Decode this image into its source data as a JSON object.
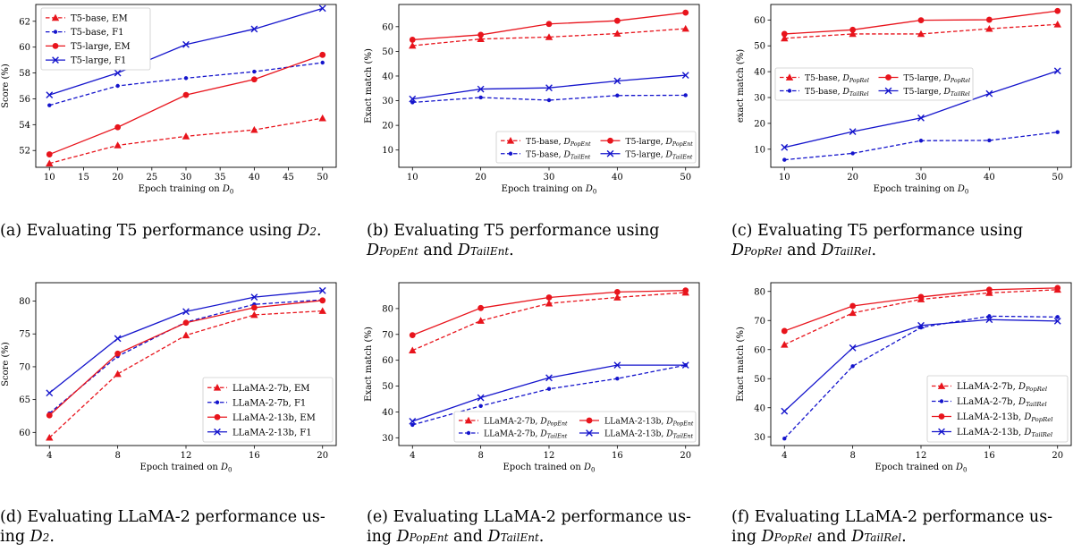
{
  "chart_data": [
    {
      "type": "line",
      "xlabel": "Epoch training on D",
      "xlabel_sub": "0",
      "ylabel": "Score (%)",
      "xlim": [
        8,
        52
      ],
      "ylim": [
        50.7,
        63.3
      ],
      "xticks": [
        10,
        15,
        20,
        25,
        30,
        35,
        40,
        45,
        50
      ],
      "yticks": [
        52,
        54,
        56,
        58,
        60,
        62
      ],
      "legend": "top-left",
      "legend_cols": 1,
      "series": [
        {
          "name": "T5-base, EM",
          "color": "#e8141c",
          "dashed": true,
          "marker": "triangle",
          "x": [
            10,
            20,
            30,
            40,
            50
          ],
          "y": [
            51.0,
            52.4,
            53.1,
            53.6,
            54.5
          ]
        },
        {
          "name": "T5-base, F1",
          "color": "#1414cc",
          "dashed": true,
          "marker": "dot",
          "x": [
            10,
            20,
            30,
            40,
            50
          ],
          "y": [
            55.5,
            57.0,
            57.6,
            58.1,
            58.8
          ]
        },
        {
          "name": "T5-large, EM",
          "color": "#e8141c",
          "dashed": false,
          "marker": "circle",
          "x": [
            10,
            20,
            30,
            40,
            50
          ],
          "y": [
            51.7,
            53.8,
            56.3,
            57.5,
            59.4
          ]
        },
        {
          "name": "T5-large, F1",
          "color": "#1414cc",
          "dashed": false,
          "marker": "x",
          "x": [
            10,
            20,
            30,
            40,
            50
          ],
          "y": [
            56.3,
            58.0,
            60.2,
            61.4,
            63.0
          ]
        }
      ]
    },
    {
      "type": "line",
      "xlabel": "Epoch training on D",
      "xlabel_sub": "0",
      "ylabel": "Exact match (%)",
      "xlim": [
        8,
        52
      ],
      "ylim": [
        3,
        69
      ],
      "xticks": [
        10,
        20,
        30,
        40,
        50
      ],
      "yticks": [
        10,
        20,
        30,
        40,
        50,
        60
      ],
      "legend": "bottom-right",
      "legend_cols": 2,
      "series": [
        {
          "name": "T5-base, D",
          "name_sub": "PopEnt",
          "color": "#e8141c",
          "dashed": true,
          "marker": "triangle",
          "x": [
            10,
            20,
            30,
            40,
            50
          ],
          "y": [
            52.3,
            55.0,
            55.8,
            57.2,
            59.2
          ]
        },
        {
          "name": "T5-base, D",
          "name_sub": "TailEnt",
          "color": "#1414cc",
          "dashed": true,
          "marker": "dot",
          "x": [
            10,
            20,
            30,
            40,
            50
          ],
          "y": [
            29.3,
            31.3,
            30.2,
            32.1,
            32.2
          ]
        },
        {
          "name": "T5-large, D",
          "name_sub": "PopEnt",
          "color": "#e8141c",
          "dashed": false,
          "marker": "circle",
          "x": [
            10,
            20,
            30,
            40,
            50
          ],
          "y": [
            54.7,
            56.7,
            61.1,
            62.4,
            65.7
          ]
        },
        {
          "name": "T5-large, D",
          "name_sub": "TailEnt",
          "color": "#1414cc",
          "dashed": false,
          "marker": "x",
          "x": [
            10,
            20,
            30,
            40,
            50
          ],
          "y": [
            30.7,
            34.7,
            35.2,
            38.0,
            40.3
          ]
        }
      ]
    },
    {
      "type": "line",
      "xlabel": "Epoch training on D",
      "xlabel_sub": "0",
      "ylabel": "exact match (%)",
      "xlim": [
        8,
        52
      ],
      "ylim": [
        3,
        66
      ],
      "xticks": [
        10,
        20,
        30,
        40,
        50
      ],
      "yticks": [
        10,
        20,
        30,
        40,
        50,
        60
      ],
      "legend": "center-left",
      "legend_cols": 2,
      "series": [
        {
          "name": "T5-base, D",
          "name_sub": "PopRel",
          "color": "#e8141c",
          "dashed": true,
          "marker": "triangle",
          "x": [
            10,
            20,
            30,
            40,
            50
          ],
          "y": [
            52.9,
            54.6,
            54.6,
            56.6,
            58.3
          ]
        },
        {
          "name": "T5-base, D",
          "name_sub": "TailRel",
          "color": "#1414cc",
          "dashed": true,
          "marker": "dot",
          "x": [
            10,
            20,
            30,
            40,
            50
          ],
          "y": [
            5.9,
            8.4,
            13.3,
            13.4,
            16.6
          ]
        },
        {
          "name": "T5-large, D",
          "name_sub": "PopRel",
          "color": "#e8141c",
          "dashed": false,
          "marker": "circle",
          "x": [
            10,
            20,
            30,
            40,
            50
          ],
          "y": [
            54.6,
            56.2,
            59.9,
            60.1,
            63.5
          ]
        },
        {
          "name": "T5-large, D",
          "name_sub": "TailRel",
          "color": "#1414cc",
          "dashed": false,
          "marker": "x",
          "x": [
            10,
            20,
            30,
            40,
            50
          ],
          "y": [
            10.7,
            16.8,
            22.1,
            31.5,
            40.3
          ]
        }
      ]
    },
    {
      "type": "line",
      "xlabel": "Epoch trained on D",
      "xlabel_sub": "0",
      "ylabel": "Score (%)",
      "xlim": [
        3.2,
        20.8
      ],
      "ylim": [
        58.0,
        82.8
      ],
      "xticks": [
        4,
        8,
        12,
        16,
        20
      ],
      "yticks": [
        60,
        65,
        70,
        75,
        80
      ],
      "legend": "bottom-right",
      "legend_cols": 1,
      "series": [
        {
          "name": "LLaMA-2-7b, EM",
          "color": "#e8141c",
          "dashed": true,
          "marker": "triangle",
          "x": [
            4,
            8,
            12,
            16,
            20
          ],
          "y": [
            59.2,
            68.9,
            74.8,
            77.9,
            78.5
          ]
        },
        {
          "name": "LLaMA-2-7b, F1",
          "color": "#1414cc",
          "dashed": true,
          "marker": "dot",
          "x": [
            4,
            8,
            12,
            16,
            20
          ],
          "y": [
            62.9,
            71.6,
            76.8,
            79.5,
            80.2
          ]
        },
        {
          "name": "LLaMA-2-13b, EM",
          "color": "#e8141c",
          "dashed": false,
          "marker": "circle",
          "x": [
            4,
            8,
            12,
            16,
            20
          ],
          "y": [
            62.6,
            72.0,
            76.7,
            79.0,
            80.1
          ]
        },
        {
          "name": "LLaMA-2-13b, F1",
          "color": "#1414cc",
          "dashed": false,
          "marker": "x",
          "x": [
            4,
            8,
            12,
            16,
            20
          ],
          "y": [
            66.0,
            74.3,
            78.4,
            80.6,
            81.6
          ]
        }
      ]
    },
    {
      "type": "line",
      "xlabel": "Epoch trained on D",
      "xlabel_sub": "0",
      "ylabel": "Exact match (%)",
      "xlim": [
        3.2,
        20.8
      ],
      "ylim": [
        27,
        90
      ],
      "xticks": [
        4,
        8,
        12,
        16,
        20
      ],
      "yticks": [
        30,
        40,
        50,
        60,
        70,
        80
      ],
      "legend": "bottom-right",
      "legend_cols": 2,
      "series": [
        {
          "name": "LLaMA-2-7b, D",
          "name_sub": "PopEnt",
          "color": "#e8141c",
          "dashed": true,
          "marker": "triangle",
          "x": [
            4,
            8,
            12,
            16,
            20
          ],
          "y": [
            63.8,
            75.3,
            82.0,
            84.3,
            86.2
          ]
        },
        {
          "name": "LLaMA-2-7b, D",
          "name_sub": "TailEnt",
          "color": "#1414cc",
          "dashed": true,
          "marker": "dot",
          "x": [
            4,
            8,
            12,
            16,
            20
          ],
          "y": [
            35.0,
            42.3,
            48.9,
            52.9,
            58.1
          ]
        },
        {
          "name": "LLaMA-2-13b, D",
          "name_sub": "PopEnt",
          "color": "#e8141c",
          "dashed": false,
          "marker": "circle",
          "x": [
            4,
            8,
            12,
            16,
            20
          ],
          "y": [
            69.7,
            80.2,
            84.3,
            86.4,
            87.0
          ]
        },
        {
          "name": "LLaMA-2-13b, D",
          "name_sub": "TailEnt",
          "color": "#1414cc",
          "dashed": false,
          "marker": "x",
          "x": [
            4,
            8,
            12,
            16,
            20
          ],
          "y": [
            36.4,
            45.5,
            53.2,
            58.1,
            58.1
          ]
        }
      ]
    },
    {
      "type": "line",
      "xlabel": "Epoch trained on D",
      "xlabel_sub": "0",
      "ylabel": "Exact match (%)",
      "xlim": [
        3.2,
        20.8
      ],
      "ylim": [
        27,
        83
      ],
      "xticks": [
        4,
        8,
        12,
        16,
        20
      ],
      "yticks": [
        30,
        40,
        50,
        60,
        70,
        80
      ],
      "legend": "bottom-right",
      "legend_cols": 1,
      "series": [
        {
          "name": "LLaMA-2-7b, D",
          "name_sub": "PopRel",
          "color": "#e8141c",
          "dashed": true,
          "marker": "triangle",
          "x": [
            4,
            8,
            12,
            16,
            20
          ],
          "y": [
            61.7,
            72.6,
            77.3,
            79.5,
            80.6
          ]
        },
        {
          "name": "LLaMA-2-7b, D",
          "name_sub": "TailRel",
          "color": "#1414cc",
          "dashed": true,
          "marker": "dot",
          "x": [
            4,
            8,
            12,
            16,
            20
          ],
          "y": [
            29.4,
            54.3,
            67.6,
            71.5,
            71.2
          ]
        },
        {
          "name": "LLaMA-2-13b, D",
          "name_sub": "PopRel",
          "color": "#e8141c",
          "dashed": false,
          "marker": "circle",
          "x": [
            4,
            8,
            12,
            16,
            20
          ],
          "y": [
            66.4,
            75.0,
            78.1,
            80.6,
            81.2
          ]
        },
        {
          "name": "LLaMA-2-13b, D",
          "name_sub": "TailRel",
          "color": "#1414cc",
          "dashed": false,
          "marker": "x",
          "x": [
            4,
            8,
            12,
            16,
            20
          ],
          "y": [
            38.8,
            60.6,
            68.3,
            70.3,
            69.8
          ]
        }
      ]
    }
  ],
  "captions": {
    "a": {
      "text": "(a) Evaluating T5 performance using ",
      "d": "D",
      "sub": "2",
      "end": "."
    },
    "b": {
      "line1": "(b) Evaluating T5 performance using",
      "d1": "D",
      "sub1": "PopEnt",
      "and": " and ",
      "d2": "D",
      "sub2": "TailEnt",
      "end": "."
    },
    "c": {
      "line1": "(c) Evaluating T5 performance using",
      "d1": "D",
      "sub1": "PopRel",
      "and": " and ",
      "d2": "D",
      "sub2": "TailRel",
      "end": "."
    },
    "d": {
      "line1": "(d) Evaluating LLaMA-2 performance us-",
      "line2": "ing ",
      "d": "D",
      "sub": "2",
      "end": "."
    },
    "e": {
      "line1": "(e) Evaluating LLaMA-2 performance us-",
      "line2": "ing ",
      "d1": "D",
      "sub1": "PopEnt",
      "and": " and ",
      "d2": "D",
      "sub2": "TailEnt",
      "end": "."
    },
    "f": {
      "line1": "(f) Evaluating LLaMA-2 performance us-",
      "line2": "ing ",
      "d1": "D",
      "sub1": "PopRel",
      "and": " and ",
      "d2": "D",
      "sub2": "TailRel",
      "end": "."
    }
  }
}
